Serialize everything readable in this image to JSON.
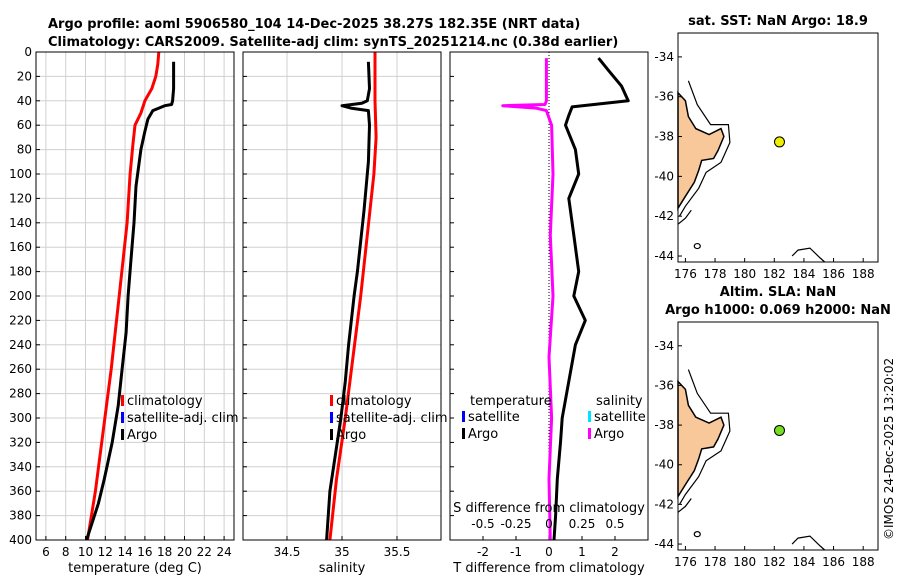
{
  "figure": {
    "title_line1": "Argo profile: aoml 5906580_104 14-Dec-2025 38.27S 182.35E (NRT data)",
    "title_line2": "Climatology: CARS2009. Satellite-adj clim: synTS_20251214.nc (0.38d earlier)",
    "watermark": "©IMOS 24-Dec-2025 13:20:02"
  },
  "colors": {
    "climatology": "#ff0000",
    "satellite_clim": "#0000ff",
    "argo": "#000000",
    "t_diff_argo": "#000000",
    "s_diff_argo": "#ff00ff",
    "s_diff_satellite": "#00e5ff",
    "land": "#f8c79a",
    "sst_dot": "#eeee00",
    "sla_dot": "#77dd22"
  },
  "legends": {
    "temperature": {
      "items": [
        "climatology",
        "satellite-adj. clim",
        "Argo"
      ]
    },
    "salinity": {
      "items": [
        "climatology",
        "satellite-adj. clim",
        "Argo"
      ]
    },
    "difference": {
      "temp_header": "temperature",
      "temp_items": [
        "satellite",
        "Argo"
      ],
      "sal_header": "salinity",
      "sal_items": [
        "satellite",
        "Argo"
      ]
    }
  },
  "chart_data": [
    {
      "type": "line",
      "id": "temperature",
      "xlabel": "temperature (deg C)",
      "ylabel": "",
      "xlim": [
        5,
        25
      ],
      "ylim": [
        400,
        0
      ],
      "xticks": [
        "6",
        "8",
        "10",
        "12",
        "14",
        "16",
        "18",
        "20",
        "22",
        "24"
      ],
      "xtick_values": [
        6,
        8,
        10,
        12,
        14,
        16,
        18,
        20,
        22,
        24
      ],
      "yticks": [
        "0",
        "20",
        "40",
        "60",
        "80",
        "100",
        "120",
        "140",
        "160",
        "180",
        "200",
        "220",
        "240",
        "260",
        "280",
        "300",
        "320",
        "340",
        "360",
        "380",
        "400"
      ],
      "ytick_values": [
        0,
        20,
        40,
        60,
        80,
        100,
        120,
        140,
        160,
        180,
        200,
        220,
        240,
        260,
        280,
        300,
        320,
        340,
        360,
        380,
        400
      ],
      "grid": true,
      "series": [
        {
          "name": "climatology",
          "points": [
            [
              17.4,
              0
            ],
            [
              17.3,
              10
            ],
            [
              17.1,
              20
            ],
            [
              16.7,
              30
            ],
            [
              16.0,
              40
            ],
            [
              15.6,
              50
            ],
            [
              15.0,
              60
            ],
            [
              14.8,
              75
            ],
            [
              14.5,
              100
            ],
            [
              14.2,
              140
            ],
            [
              13.4,
              200
            ],
            [
              12.6,
              260
            ],
            [
              11.8,
              310
            ],
            [
              11.0,
              360
            ],
            [
              10.2,
              400
            ]
          ]
        },
        {
          "name": "Argo",
          "points": [
            [
              18.9,
              8
            ],
            [
              18.9,
              30
            ],
            [
              18.8,
              40
            ],
            [
              18.7,
              43
            ],
            [
              18.0,
              44
            ],
            [
              16.8,
              48
            ],
            [
              16.3,
              55
            ],
            [
              16.0,
              65
            ],
            [
              15.6,
              80
            ],
            [
              15.1,
              110
            ],
            [
              14.9,
              140
            ],
            [
              14.6,
              170
            ],
            [
              14.3,
              200
            ],
            [
              14.1,
              230
            ],
            [
              13.7,
              260
            ],
            [
              13.3,
              290
            ],
            [
              12.7,
              320
            ],
            [
              11.9,
              350
            ],
            [
              11.3,
              370
            ],
            [
              10.5,
              390
            ],
            [
              10.1,
              400
            ]
          ]
        }
      ]
    },
    {
      "type": "line",
      "id": "salinity",
      "xlabel": "salinity",
      "ylabel": "",
      "xlim": [
        34.1,
        35.9
      ],
      "ylim": [
        400,
        0
      ],
      "xticks": [
        "34.5",
        "35",
        "35.5"
      ],
      "xtick_values": [
        34.5,
        35,
        35.5
      ],
      "grid": true,
      "series": [
        {
          "name": "climatology",
          "points": [
            [
              35.3,
              0
            ],
            [
              35.3,
              40
            ],
            [
              35.31,
              70
            ],
            [
              35.29,
              100
            ],
            [
              35.23,
              150
            ],
            [
              35.17,
              200
            ],
            [
              35.1,
              250
            ],
            [
              35.03,
              300
            ],
            [
              34.95,
              350
            ],
            [
              34.89,
              400
            ]
          ]
        },
        {
          "name": "Argo",
          "points": [
            [
              35.24,
              8
            ],
            [
              35.25,
              30
            ],
            [
              35.23,
              40
            ],
            [
              35.18,
              42
            ],
            [
              35.0,
              44
            ],
            [
              35.08,
              46
            ],
            [
              35.24,
              48
            ],
            [
              35.25,
              60
            ],
            [
              35.24,
              90
            ],
            [
              35.2,
              130
            ],
            [
              35.14,
              180
            ],
            [
              35.11,
              200
            ],
            [
              35.06,
              240
            ],
            [
              35.03,
              270
            ],
            [
              34.99,
              300
            ],
            [
              34.94,
              330
            ],
            [
              34.89,
              360
            ],
            [
              34.86,
              400
            ]
          ]
        }
      ]
    },
    {
      "type": "line",
      "id": "difference",
      "xlabel": "T difference from climatology",
      "xlabel_top": "S difference from climatology",
      "xlim": [
        -3,
        3
      ],
      "ylim": [
        400,
        0
      ],
      "xticks": [
        "-2",
        "-1",
        "0",
        "1",
        "2"
      ],
      "xtick_values": [
        -2,
        -1,
        0,
        1,
        2
      ],
      "sticks": [
        "-0.5",
        "-0.25",
        "0",
        "0.25",
        "0.5"
      ],
      "stick_values": [
        -0.5,
        -0.25,
        0,
        0.25,
        0.5
      ],
      "grid": false,
      "series": [
        {
          "name": "T Argo",
          "points": [
            [
              1.5,
              5
            ],
            [
              1.8,
              15
            ],
            [
              2.2,
              28
            ],
            [
              2.4,
              40
            ],
            [
              0.7,
              45
            ],
            [
              0.6,
              52
            ],
            [
              0.5,
              60
            ],
            [
              0.8,
              80
            ],
            [
              0.9,
              100
            ],
            [
              0.6,
              120
            ],
            [
              0.75,
              150
            ],
            [
              0.9,
              180
            ],
            [
              0.75,
              200
            ],
            [
              1.1,
              220
            ],
            [
              0.8,
              240
            ],
            [
              0.6,
              270
            ],
            [
              0.4,
              300
            ],
            [
              0.35,
              320
            ],
            [
              0.25,
              350
            ],
            [
              0.2,
              380
            ],
            [
              0.15,
              400
            ]
          ]
        },
        {
          "name": "S Argo",
          "points": [
            [
              -0.02,
              5
            ],
            [
              -0.02,
              40
            ],
            [
              -0.03,
              43
            ],
            [
              -0.35,
              44
            ],
            [
              -0.1,
              46
            ],
            [
              -0.02,
              48
            ],
            [
              0.02,
              60
            ],
            [
              0.03,
              100
            ],
            [
              0.01,
              150
            ],
            [
              0.03,
              200
            ],
            [
              0.0,
              250
            ],
            [
              0.02,
              300
            ],
            [
              0.0,
              350
            ],
            [
              0.01,
              400
            ]
          ]
        }
      ]
    },
    {
      "type": "map",
      "id": "sst-map",
      "title": "sat. SST: NaN Argo: 18.9",
      "xlim": [
        175.5,
        189
      ],
      "ylim": [
        -44.3,
        -32.8
      ],
      "xticks": [
        "176",
        "178",
        "180",
        "182",
        "184",
        "186",
        "188"
      ],
      "xtick_values": [
        176,
        178,
        180,
        182,
        184,
        186,
        188
      ],
      "yticks": [
        "-34",
        "-36",
        "-38",
        "-40",
        "-42",
        "-44"
      ],
      "ytick_values": [
        -34,
        -36,
        -38,
        -40,
        -42,
        -44
      ],
      "marker": {
        "lon": 182.35,
        "lat": -38.27
      }
    },
    {
      "type": "map",
      "id": "sla-map",
      "title_line1": "Altim. SLA: NaN",
      "title_line2": "Argo h1000: 0.069 h2000: NaN",
      "xlim": [
        175.5,
        189
      ],
      "ylim": [
        -44.3,
        -32.8
      ],
      "xticks": [
        "176",
        "178",
        "180",
        "182",
        "184",
        "186",
        "188"
      ],
      "xtick_values": [
        176,
        178,
        180,
        182,
        184,
        186,
        188
      ],
      "yticks": [
        "-34",
        "-36",
        "-38",
        "-40",
        "-42",
        "-44"
      ],
      "ytick_values": [
        -34,
        -36,
        -38,
        -40,
        -42,
        -44
      ],
      "marker": {
        "lon": 182.35,
        "lat": -38.27
      }
    }
  ]
}
